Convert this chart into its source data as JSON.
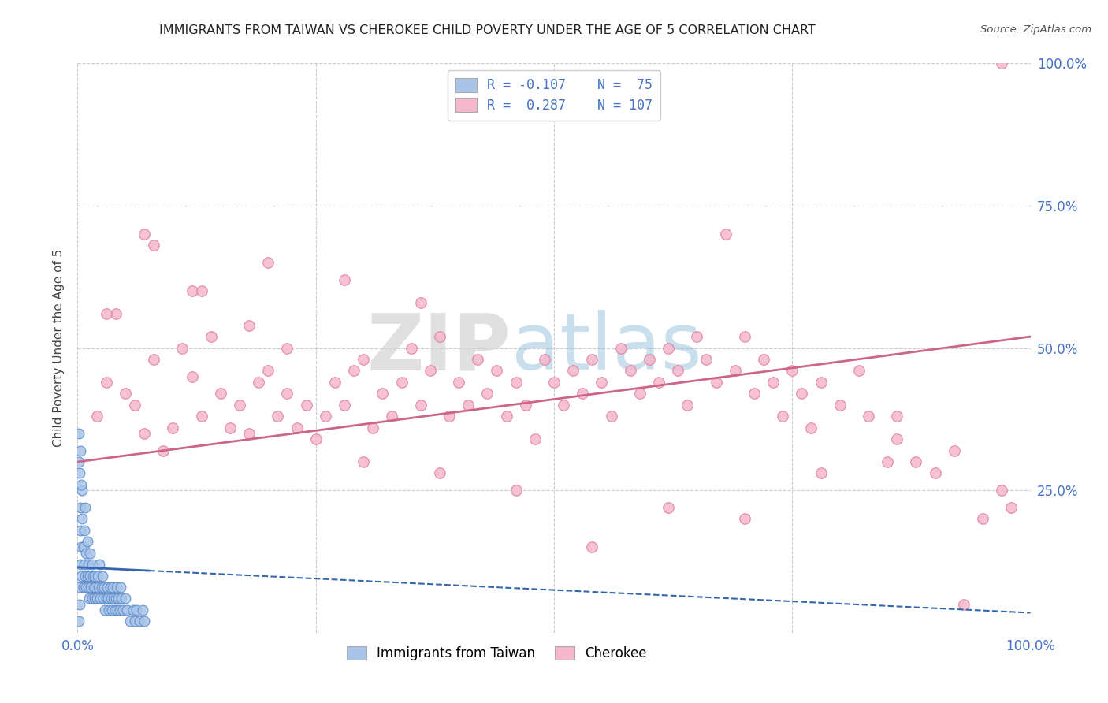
{
  "title": "IMMIGRANTS FROM TAIWAN VS CHEROKEE CHILD POVERTY UNDER THE AGE OF 5 CORRELATION CHART",
  "source": "Source: ZipAtlas.com",
  "ylabel": "Child Poverty Under the Age of 5",
  "legend_taiwan_R": -0.107,
  "legend_taiwan_N": 75,
  "legend_cherokee_R": 0.287,
  "legend_cherokee_N": 107,
  "taiwan_color_face": "#aac4e8",
  "taiwan_color_edge": "#5588cc",
  "cherokee_color_face": "#f5b8cc",
  "cherokee_color_edge": "#e07898",
  "taiwan_line_color": "#3366aa",
  "cherokee_line_color": "#cc6688",
  "grid_color": "#cccccc",
  "title_color": "#222222",
  "right_label_color": "#4472c4",
  "background_color": "#ffffff",
  "xlim": [
    0.0,
    1.0
  ],
  "ylim": [
    0.0,
    1.0
  ],
  "x_ticks": [
    0.0,
    0.25,
    0.5,
    0.75,
    1.0
  ],
  "x_tick_labels": [
    "0.0%",
    "",
    "",
    "",
    "100.0%"
  ],
  "y_ticks": [
    0.0,
    0.25,
    0.5,
    0.75,
    1.0
  ],
  "y_tick_labels": [
    "",
    "25.0%",
    "50.0%",
    "75.0%",
    "100.0%"
  ],
  "taiwan_label": "Immigrants from Taiwan",
  "cherokee_label": "Cherokee",
  "cherokee_x": [
    0.02,
    0.03,
    0.05,
    0.06,
    0.07,
    0.08,
    0.09,
    0.1,
    0.11,
    0.12,
    0.13,
    0.14,
    0.15,
    0.16,
    0.17,
    0.18,
    0.19,
    0.2,
    0.21,
    0.22,
    0.23,
    0.24,
    0.25,
    0.26,
    0.27,
    0.28,
    0.29,
    0.3,
    0.31,
    0.32,
    0.33,
    0.34,
    0.35,
    0.36,
    0.37,
    0.38,
    0.39,
    0.4,
    0.41,
    0.42,
    0.43,
    0.44,
    0.45,
    0.46,
    0.47,
    0.48,
    0.49,
    0.5,
    0.51,
    0.52,
    0.53,
    0.54,
    0.55,
    0.56,
    0.57,
    0.58,
    0.59,
    0.6,
    0.61,
    0.62,
    0.63,
    0.64,
    0.65,
    0.66,
    0.67,
    0.68,
    0.69,
    0.7,
    0.71,
    0.72,
    0.73,
    0.74,
    0.75,
    0.76,
    0.77,
    0.78,
    0.8,
    0.82,
    0.83,
    0.85,
    0.86,
    0.88,
    0.9,
    0.92,
    0.95,
    0.97,
    0.98,
    0.04,
    0.08,
    0.12,
    0.18,
    0.22,
    0.3,
    0.38,
    0.46,
    0.54,
    0.62,
    0.7,
    0.78,
    0.86,
    0.93,
    0.03,
    0.07,
    0.13,
    0.2,
    0.28,
    0.36
  ],
  "cherokee_y": [
    0.38,
    0.44,
    0.42,
    0.4,
    0.35,
    0.48,
    0.32,
    0.36,
    0.5,
    0.45,
    0.38,
    0.52,
    0.42,
    0.36,
    0.4,
    0.35,
    0.44,
    0.46,
    0.38,
    0.42,
    0.36,
    0.4,
    0.34,
    0.38,
    0.44,
    0.4,
    0.46,
    0.48,
    0.36,
    0.42,
    0.38,
    0.44,
    0.5,
    0.4,
    0.46,
    0.52,
    0.38,
    0.44,
    0.4,
    0.48,
    0.42,
    0.46,
    0.38,
    0.44,
    0.4,
    0.34,
    0.48,
    0.44,
    0.4,
    0.46,
    0.42,
    0.48,
    0.44,
    0.38,
    0.5,
    0.46,
    0.42,
    0.48,
    0.44,
    0.5,
    0.46,
    0.4,
    0.52,
    0.48,
    0.44,
    0.7,
    0.46,
    0.52,
    0.42,
    0.48,
    0.44,
    0.38,
    0.46,
    0.42,
    0.36,
    0.44,
    0.4,
    0.46,
    0.38,
    0.3,
    0.34,
    0.3,
    0.28,
    0.32,
    0.2,
    0.25,
    0.22,
    0.56,
    0.68,
    0.6,
    0.54,
    0.5,
    0.3,
    0.28,
    0.25,
    0.15,
    0.22,
    0.2,
    0.28,
    0.38,
    0.05,
    0.56,
    0.7,
    0.6,
    0.65,
    0.62,
    0.58
  ],
  "taiwan_x": [
    0.001,
    0.002,
    0.002,
    0.003,
    0.003,
    0.003,
    0.004,
    0.004,
    0.005,
    0.005,
    0.006,
    0.006,
    0.007,
    0.007,
    0.008,
    0.008,
    0.009,
    0.009,
    0.01,
    0.01,
    0.011,
    0.011,
    0.012,
    0.013,
    0.013,
    0.014,
    0.015,
    0.015,
    0.016,
    0.017,
    0.018,
    0.018,
    0.019,
    0.02,
    0.021,
    0.022,
    0.023,
    0.024,
    0.025,
    0.026,
    0.027,
    0.028,
    0.029,
    0.03,
    0.031,
    0.032,
    0.033,
    0.034,
    0.035,
    0.036,
    0.037,
    0.038,
    0.039,
    0.04,
    0.041,
    0.042,
    0.043,
    0.044,
    0.045,
    0.046,
    0.048,
    0.05,
    0.052,
    0.055,
    0.058,
    0.06,
    0.062,
    0.065,
    0.068,
    0.07,
    0.001,
    0.002,
    0.003,
    0.004,
    0.001
  ],
  "taiwan_y": [
    0.02,
    0.05,
    0.08,
    0.12,
    0.18,
    0.22,
    0.15,
    0.1,
    0.25,
    0.2,
    0.08,
    0.15,
    0.12,
    0.18,
    0.1,
    0.22,
    0.08,
    0.14,
    0.1,
    0.16,
    0.08,
    0.12,
    0.06,
    0.1,
    0.14,
    0.08,
    0.12,
    0.06,
    0.1,
    0.08,
    0.06,
    0.1,
    0.08,
    0.06,
    0.1,
    0.08,
    0.12,
    0.06,
    0.08,
    0.1,
    0.06,
    0.08,
    0.04,
    0.06,
    0.08,
    0.06,
    0.04,
    0.08,
    0.06,
    0.04,
    0.08,
    0.06,
    0.04,
    0.06,
    0.08,
    0.04,
    0.06,
    0.04,
    0.08,
    0.06,
    0.04,
    0.06,
    0.04,
    0.02,
    0.04,
    0.02,
    0.04,
    0.02,
    0.04,
    0.02,
    0.3,
    0.28,
    0.32,
    0.26,
    0.35
  ]
}
